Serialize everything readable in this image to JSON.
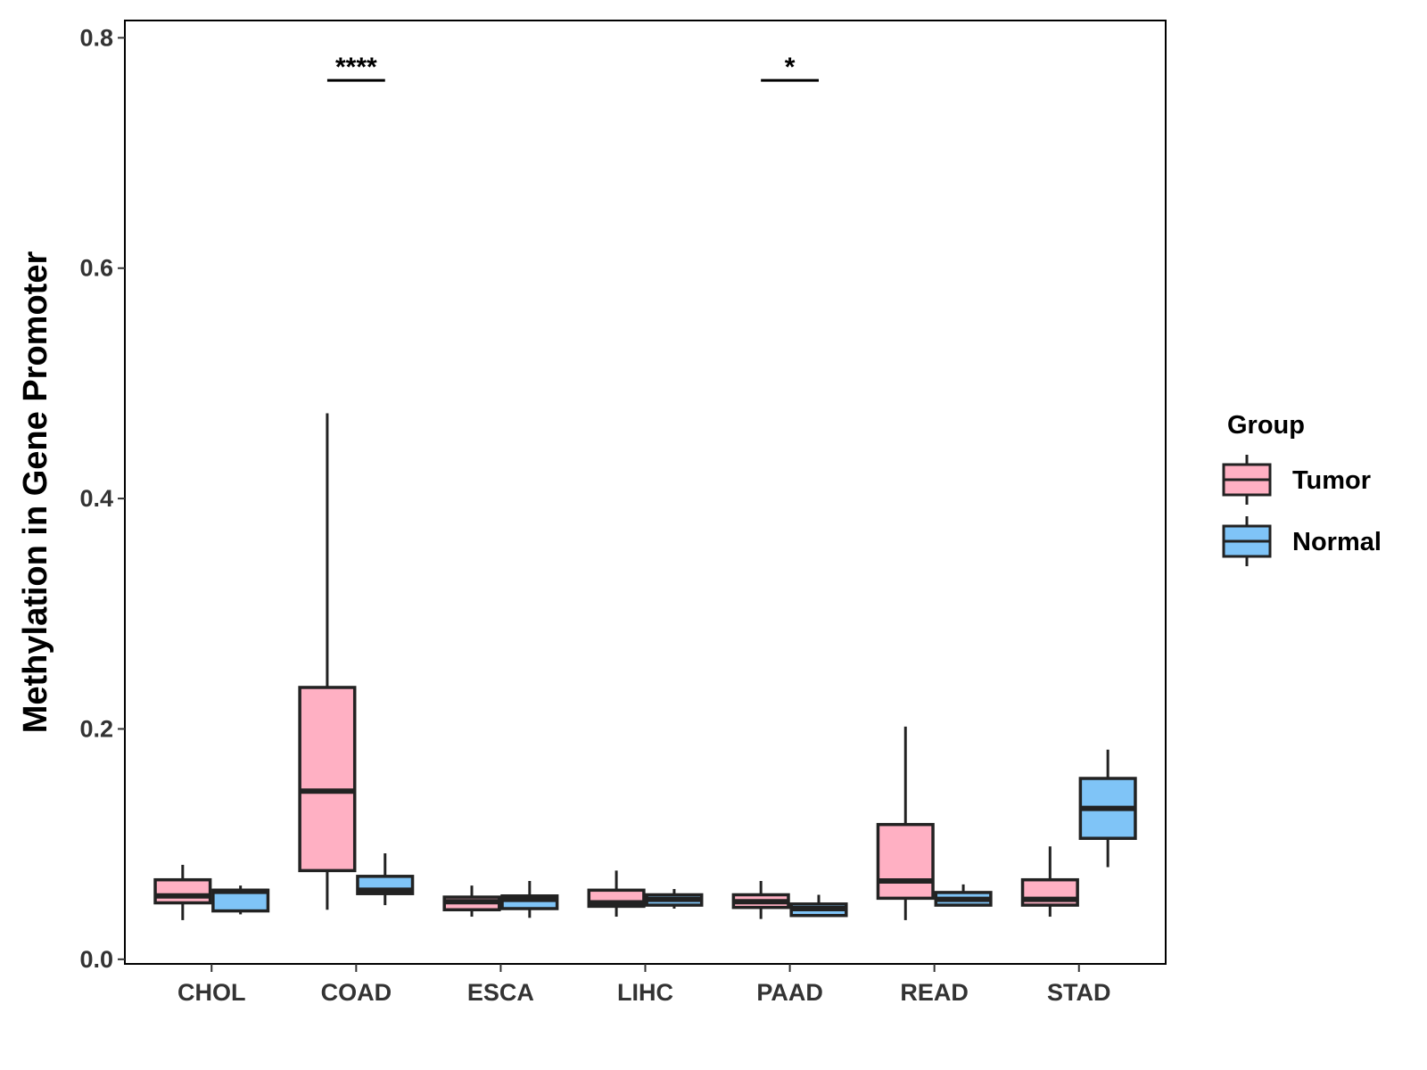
{
  "chart_data": {
    "type": "boxplot",
    "title": "",
    "xlabel": "",
    "ylabel": "Methylation in Gene Promoter",
    "ylim": [
      -0.004,
      0.815
    ],
    "yticks": [
      0.0,
      0.2,
      0.4,
      0.6,
      0.8
    ],
    "ytick_labels": [
      "0.0",
      "0.2",
      "0.4",
      "0.6",
      "0.8"
    ],
    "categories": [
      "CHOL",
      "COAD",
      "ESCA",
      "LIHC",
      "PAAD",
      "READ",
      "STAD"
    ],
    "grid": false,
    "legend": {
      "title": "Group",
      "position": "right",
      "entries": [
        {
          "name": "Tumor",
          "color": "#FFB0C3"
        },
        {
          "name": "Normal",
          "color": "#7FC4F7"
        }
      ]
    },
    "series": [
      {
        "name": "Tumor",
        "color": "#FFB0C3",
        "boxes": [
          {
            "category": "CHOL",
            "min": 0.034,
            "q1": 0.049,
            "median": 0.055,
            "q3": 0.069,
            "max": 0.082
          },
          {
            "category": "COAD",
            "min": 0.043,
            "q1": 0.077,
            "median": 0.146,
            "q3": 0.236,
            "max": 0.474
          },
          {
            "category": "ESCA",
            "min": 0.037,
            "q1": 0.043,
            "median": 0.05,
            "q3": 0.054,
            "max": 0.064
          },
          {
            "category": "LIHC",
            "min": 0.037,
            "q1": 0.046,
            "median": 0.049,
            "q3": 0.06,
            "max": 0.077
          },
          {
            "category": "PAAD",
            "min": 0.035,
            "q1": 0.045,
            "median": 0.05,
            "q3": 0.056,
            "max": 0.068
          },
          {
            "category": "READ",
            "min": 0.034,
            "q1": 0.053,
            "median": 0.068,
            "q3": 0.117,
            "max": 0.202
          },
          {
            "category": "STAD",
            "min": 0.037,
            "q1": 0.047,
            "median": 0.052,
            "q3": 0.069,
            "max": 0.098
          }
        ]
      },
      {
        "name": "Normal",
        "color": "#7FC4F7",
        "boxes": [
          {
            "category": "CHOL",
            "min": 0.039,
            "q1": 0.042,
            "median": 0.059,
            "q3": 0.06,
            "max": 0.064
          },
          {
            "category": "COAD",
            "min": 0.047,
            "q1": 0.057,
            "median": 0.06,
            "q3": 0.072,
            "max": 0.092
          },
          {
            "category": "ESCA",
            "min": 0.036,
            "q1": 0.044,
            "median": 0.052,
            "q3": 0.055,
            "max": 0.068
          },
          {
            "category": "LIHC",
            "min": 0.044,
            "q1": 0.047,
            "median": 0.052,
            "q3": 0.056,
            "max": 0.061
          },
          {
            "category": "PAAD",
            "min": 0.038,
            "q1": 0.038,
            "median": 0.044,
            "q3": 0.048,
            "max": 0.056
          },
          {
            "category": "READ",
            "min": 0.046,
            "q1": 0.047,
            "median": 0.052,
            "q3": 0.058,
            "max": 0.065
          },
          {
            "category": "STAD",
            "min": 0.08,
            "q1": 0.105,
            "median": 0.131,
            "q3": 0.157,
            "max": 0.182
          }
        ]
      }
    ],
    "annotations": [
      {
        "category": "COAD",
        "label": "****",
        "y": 0.763
      },
      {
        "category": "PAAD",
        "label": "*",
        "y": 0.763
      }
    ]
  }
}
